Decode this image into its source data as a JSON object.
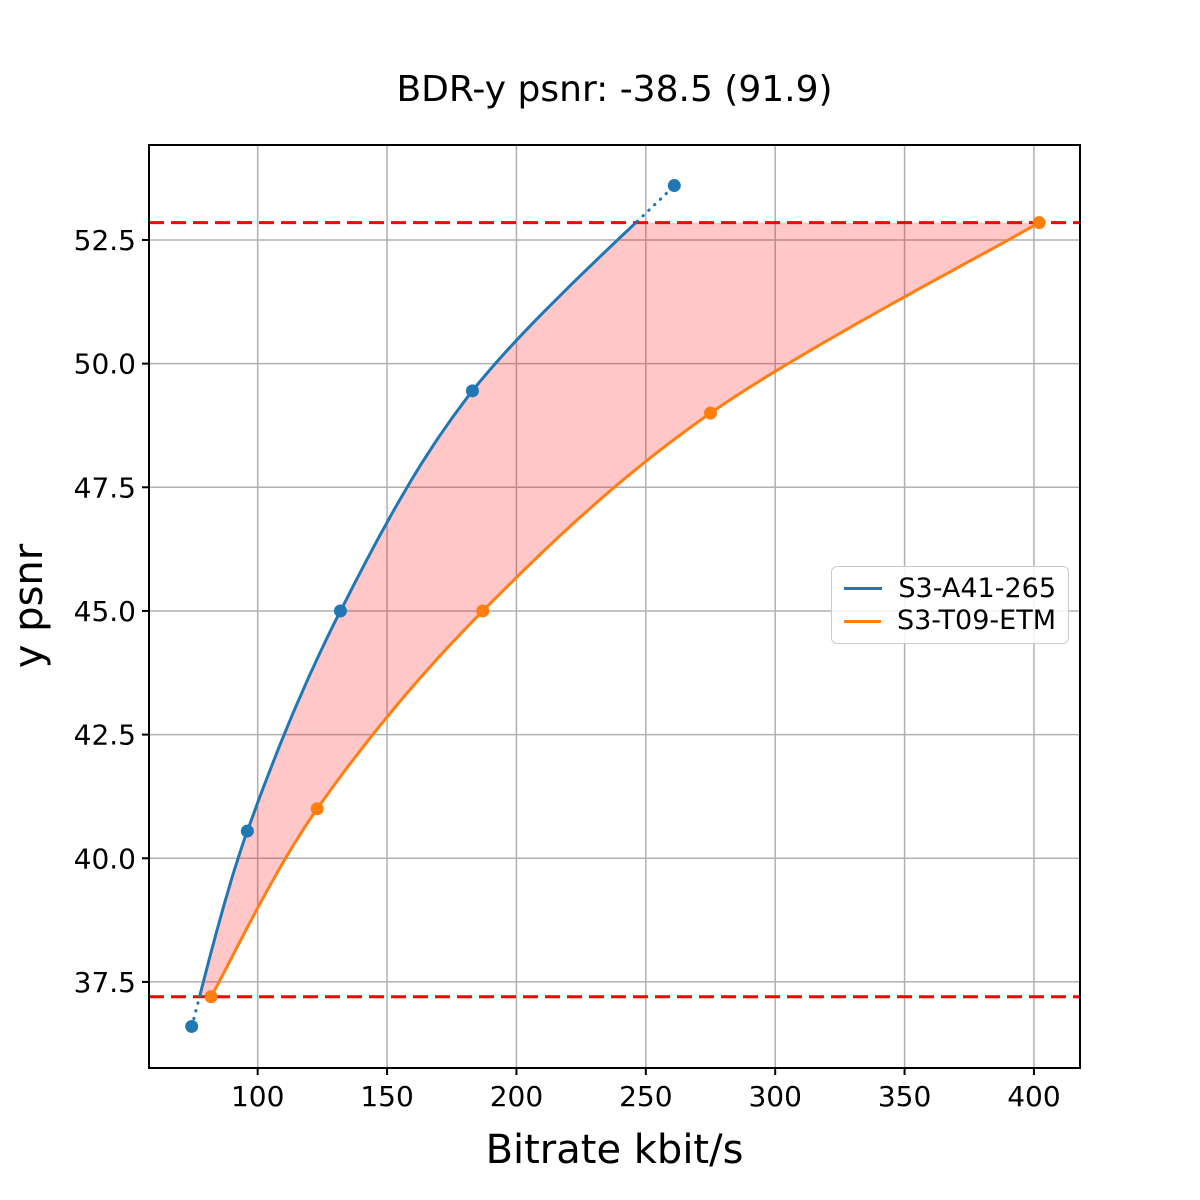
{
  "chart_data": {
    "type": "line",
    "title": "BDR-y psnr: -38.5 (91.9)",
    "xlabel": "Bitrate kbit/s",
    "ylabel": "y psnr",
    "xlim": [
      58,
      417.8
    ],
    "ylim": [
      35.76,
      54.42
    ],
    "xticks": [
      100,
      150,
      200,
      250,
      300,
      350,
      400
    ],
    "yticks": [
      37.5,
      40.0,
      42.5,
      45.0,
      47.5,
      50.0,
      52.5
    ],
    "grid": true,
    "grid_color": "#b0b0b0",
    "axis_color": "#000000",
    "legend_position": "center-right",
    "series": [
      {
        "name": "S3-A41-265",
        "color": "#1f77b4",
        "marker": "circle",
        "x": [
          74.5,
          96,
          132,
          183,
          261
        ],
        "y": [
          36.6,
          40.55,
          45.0,
          49.45,
          53.6
        ],
        "dotted_outside_band": true
      },
      {
        "name": "S3-T09-ETM",
        "color": "#ff7f0e",
        "marker": "circle",
        "x": [
          82,
          123,
          187,
          275,
          402
        ],
        "y": [
          37.2,
          41.0,
          45.0,
          49.0,
          52.85
        ],
        "dotted_outside_band": false
      }
    ],
    "hlines": [
      {
        "y": 52.85,
        "color": "#ff0000",
        "style": "dashed"
      },
      {
        "y": 37.2,
        "color": "#ff0000",
        "style": "dashed"
      }
    ],
    "fill_between": {
      "color": "#ff0000",
      "opacity": 0.22
    }
  }
}
